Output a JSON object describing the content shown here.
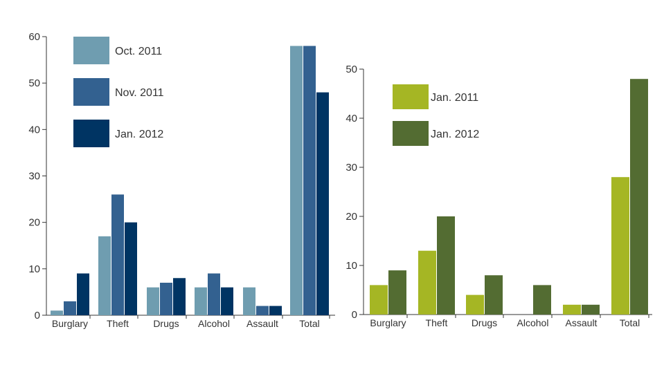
{
  "chart_data": [
    {
      "type": "bar",
      "categories": [
        "Burglary",
        "Theft",
        "Drugs",
        "Alcohol",
        "Assault",
        "Total"
      ],
      "series": [
        {
          "name": "Oct. 2011",
          "values": [
            1,
            17,
            6,
            6,
            6,
            58
          ],
          "color": "#6f9db0"
        },
        {
          "name": "Nov. 2011",
          "values": [
            3,
            26,
            7,
            9,
            2,
            58
          ],
          "color": "#336190"
        },
        {
          "name": "Jan. 2012",
          "values": [
            9,
            20,
            8,
            6,
            2,
            48
          ],
          "color": "#003463"
        }
      ],
      "ylim": [
        0,
        60
      ],
      "yticks": [
        0,
        10,
        20,
        30,
        40,
        50,
        60
      ],
      "legend_position": "top-left",
      "grid": false
    },
    {
      "type": "bar",
      "categories": [
        "Burglary",
        "Theft",
        "Drugs",
        "Alcohol",
        "Assault",
        "Total"
      ],
      "series": [
        {
          "name": "Jan. 2011",
          "values": [
            6,
            13,
            4,
            0,
            2,
            28
          ],
          "color": "#a5b624"
        },
        {
          "name": "Jan. 2012",
          "values": [
            9,
            20,
            8,
            6,
            2,
            48
          ],
          "color": "#536c32"
        }
      ],
      "ylim": [
        0,
        50
      ],
      "yticks": [
        0,
        10,
        20,
        30,
        40,
        50
      ],
      "legend_position": "top-left",
      "grid": false
    }
  ]
}
